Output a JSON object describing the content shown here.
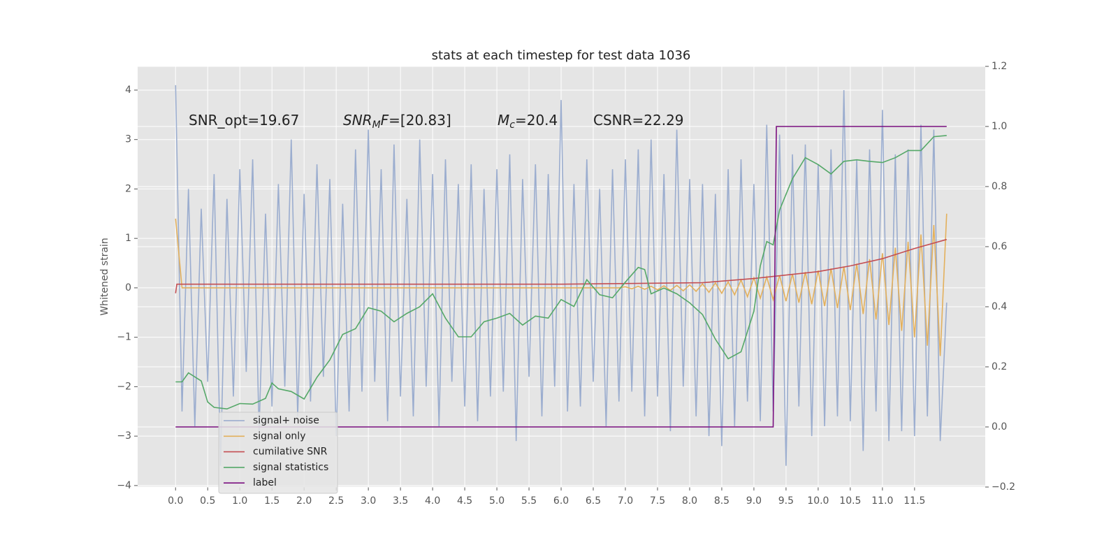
{
  "chart_data": {
    "type": "line",
    "title": "stats at each timestep for test data 1036",
    "ylabel": "Whitened strain",
    "annotations": [
      {
        "text": "SNR_opt=19.67"
      },
      {
        "italic": "SNR",
        "sub": "M",
        "italic2": "F",
        "text": "=[20.83]"
      },
      {
        "italic": "M",
        "sub": "c",
        "text": "=20.4"
      },
      {
        "text": "CSNR=22.29"
      }
    ],
    "x": [
      0.0,
      0.1,
      0.2,
      0.3,
      0.4,
      0.5,
      0.6,
      0.7,
      0.8,
      0.9,
      1.0,
      1.1,
      1.2,
      1.3,
      1.4,
      1.5,
      1.6,
      1.7,
      1.8,
      1.9,
      2.0,
      2.1,
      2.2,
      2.3,
      2.4,
      2.5,
      2.6,
      2.7,
      2.8,
      2.9,
      3.0,
      3.1,
      3.2,
      3.3,
      3.4,
      3.5,
      3.6,
      3.7,
      3.8,
      3.9,
      4.0,
      4.1,
      4.2,
      4.3,
      4.4,
      4.5,
      4.6,
      4.7,
      4.8,
      4.9,
      5.0,
      5.1,
      5.2,
      5.3,
      5.4,
      5.5,
      5.6,
      5.7,
      5.8,
      5.9,
      6.0,
      6.1,
      6.2,
      6.3,
      6.4,
      6.5,
      6.6,
      6.7,
      6.8,
      6.9,
      7.0,
      7.1,
      7.2,
      7.3,
      7.4,
      7.5,
      7.6,
      7.7,
      7.8,
      7.9,
      8.0,
      8.1,
      8.2,
      8.3,
      8.4,
      8.5,
      8.6,
      8.7,
      8.8,
      8.9,
      9.0,
      9.1,
      9.2,
      9.3,
      9.4,
      9.5,
      9.6,
      9.7,
      9.8,
      9.9,
      10.0,
      10.1,
      10.2,
      10.3,
      10.4,
      10.5,
      10.6,
      10.7,
      10.8,
      10.9,
      11.0,
      11.1,
      11.2,
      11.3,
      11.4,
      11.5,
      11.6,
      11.7,
      11.8,
      11.9,
      12.0
    ],
    "series": [
      {
        "name": "signal+ noise",
        "color": "#97aacd",
        "axis": "y",
        "values": [
          4.1,
          -2.5,
          2.0,
          -2.8,
          1.6,
          -1.9,
          2.3,
          -3.6,
          1.8,
          -2.2,
          2.4,
          -1.7,
          2.6,
          -2.9,
          1.5,
          -2.4,
          2.1,
          -2.0,
          3.0,
          -2.6,
          1.9,
          -2.3,
          2.5,
          -1.8,
          2.2,
          -3.0,
          1.7,
          -2.5,
          2.8,
          -2.1,
          3.2,
          -1.9,
          2.4,
          -2.7,
          2.9,
          -2.2,
          1.8,
          -2.6,
          3.0,
          -2.0,
          2.3,
          -2.8,
          2.6,
          -1.9,
          2.1,
          -2.4,
          2.5,
          -2.7,
          2.0,
          -2.2,
          2.4,
          -2.1,
          2.7,
          -3.1,
          2.2,
          -1.8,
          2.5,
          -2.6,
          2.3,
          -2.0,
          3.8,
          -2.5,
          2.1,
          -2.4,
          2.6,
          -1.9,
          2.0,
          -2.8,
          2.4,
          -2.3,
          2.6,
          -2.1,
          2.8,
          -2.6,
          3.0,
          -2.2,
          2.3,
          -2.9,
          3.2,
          -2.0,
          2.2,
          -2.6,
          2.1,
          -3.0,
          1.9,
          -3.2,
          2.4,
          -2.8,
          2.6,
          -2.3,
          2.1,
          -2.7,
          3.3,
          -2.5,
          3.1,
          -3.6,
          2.7,
          -2.4,
          2.9,
          -3.0,
          2.5,
          -2.8,
          2.8,
          -2.6,
          4.0,
          -2.7,
          2.6,
          -3.3,
          2.8,
          -2.5,
          3.6,
          -3.1,
          2.7,
          -2.9,
          2.8,
          -3.0,
          3.3,
          -2.6,
          3.2,
          -3.1,
          -0.3
        ]
      },
      {
        "name": "signal only",
        "color": "#e3b05c",
        "axis": "y",
        "values": [
          1.4,
          0,
          0,
          0,
          0,
          0,
          0,
          0,
          0,
          0,
          0,
          0,
          0,
          0,
          0,
          0,
          0,
          0,
          0,
          0,
          0,
          0,
          0,
          0,
          0,
          0,
          0,
          0,
          0,
          0,
          0,
          0,
          0,
          0,
          0,
          0,
          0,
          0,
          0,
          0,
          0,
          0,
          0,
          0,
          0,
          0,
          0,
          0,
          0,
          0,
          0,
          0,
          0,
          0,
          0,
          0,
          0,
          0,
          0,
          0,
          0,
          0,
          0,
          0,
          0,
          0,
          0,
          0,
          0,
          0,
          0.02,
          -0.02,
          0.03,
          -0.03,
          0.03,
          -0.04,
          0.04,
          -0.05,
          0.05,
          -0.06,
          0.06,
          -0.07,
          0.08,
          -0.09,
          0.1,
          -0.11,
          0.12,
          -0.14,
          0.16,
          -0.18,
          0.2,
          -0.21,
          0.22,
          -0.24,
          0.25,
          -0.27,
          0.28,
          -0.3,
          0.32,
          -0.33,
          0.35,
          -0.37,
          0.39,
          -0.41,
          0.43,
          -0.45,
          0.49,
          -0.53,
          0.58,
          -0.64,
          0.7,
          -0.75,
          0.81,
          -0.87,
          0.93,
          -1.0,
          1.08,
          -1.17,
          1.27,
          -1.38,
          1.5
        ]
      },
      {
        "name": "cumilative SNR",
        "color": "#c44e52",
        "axis": "y2",
        "x": [
          0,
          0.02,
          6,
          8.2,
          9,
          10,
          10.5,
          11,
          11.5,
          12
        ],
        "values": [
          0.445,
          0.475,
          0.475,
          0.48,
          0.494,
          0.517,
          0.536,
          0.56,
          0.594,
          0.624
        ]
      },
      {
        "name": "signal statistics",
        "color": "#55a868",
        "axis": "y2",
        "x": [
          0,
          0.1,
          0.2,
          0.4,
          0.5,
          0.6,
          0.8,
          1.0,
          1.2,
          1.4,
          1.5,
          1.6,
          1.8,
          2.0,
          2.2,
          2.4,
          2.6,
          2.8,
          3.0,
          3.2,
          3.4,
          3.6,
          3.8,
          4.0,
          4.2,
          4.4,
          4.6,
          4.8,
          5.0,
          5.2,
          5.4,
          5.6,
          5.8,
          6.0,
          6.2,
          6.4,
          6.6,
          6.8,
          7.0,
          7.2,
          7.3,
          7.4,
          7.6,
          7.8,
          8.0,
          8.2,
          8.4,
          8.6,
          8.8,
          9.0,
          9.1,
          9.2,
          9.3,
          9.4,
          9.6,
          9.8,
          10.0,
          10.2,
          10.4,
          10.6,
          10.8,
          11.0,
          11.2,
          11.4,
          11.6,
          11.8,
          12.0
        ],
        "values": [
          0.15,
          0.15,
          0.18,
          0.153,
          0.083,
          0.065,
          0.06,
          0.078,
          0.076,
          0.095,
          0.146,
          0.127,
          0.118,
          0.093,
          0.165,
          0.223,
          0.308,
          0.327,
          0.397,
          0.385,
          0.35,
          0.378,
          0.4,
          0.443,
          0.362,
          0.3,
          0.3,
          0.35,
          0.362,
          0.378,
          0.339,
          0.369,
          0.362,
          0.424,
          0.401,
          0.49,
          0.44,
          0.43,
          0.482,
          0.531,
          0.524,
          0.443,
          0.462,
          0.443,
          0.413,
          0.374,
          0.292,
          0.227,
          0.25,
          0.385,
          0.536,
          0.617,
          0.606,
          0.722,
          0.826,
          0.896,
          0.873,
          0.842,
          0.884,
          0.889,
          0.884,
          0.88,
          0.896,
          0.92,
          0.92,
          0.966,
          0.97
        ]
      },
      {
        "name": "label",
        "color": "#7b1080",
        "axis": "y2",
        "x": [
          0,
          9.3,
          9.35,
          12.0
        ],
        "values": [
          0,
          0,
          1,
          1
        ]
      }
    ],
    "xlim": [
      -0.59,
      12.6
    ],
    "xticks": [
      {
        "value": 0,
        "label": "0.0"
      },
      0.5,
      {
        "value": 1,
        "label": "1.0"
      },
      1.5,
      {
        "value": 2,
        "label": "2.0"
      },
      2.5,
      {
        "value": 3,
        "label": "3.0"
      },
      3.5,
      {
        "value": 4,
        "label": "4.0"
      },
      4.5,
      {
        "value": 5,
        "label": "5.0"
      },
      5.5,
      {
        "value": 6,
        "label": "6.0"
      },
      6.5,
      {
        "value": 7,
        "label": "7.0"
      },
      7.5,
      {
        "value": 8,
        "label": "8.0"
      },
      8.5,
      {
        "value": 9,
        "label": "9.0"
      },
      9.5,
      {
        "value": 10,
        "label": "10.0"
      },
      10.5,
      {
        "value": 11,
        "label": "11.0"
      },
      11.5
    ],
    "ylim": [
      -4.03,
      4.48
    ],
    "yticks": [
      {
        "value": -4,
        "label": "−4"
      },
      {
        "value": -3,
        "label": "−3"
      },
      {
        "value": -2,
        "label": "−2"
      },
      {
        "value": -1,
        "label": "−1"
      },
      0,
      1,
      2,
      3,
      4
    ],
    "y2lim": [
      -0.2,
      1.2
    ],
    "y2ticks": [
      {
        "value": -0.2,
        "label": "−0.2"
      },
      {
        "value": 0,
        "label": "0.0"
      },
      {
        "value": 0.2,
        "label": "0.2"
      },
      {
        "value": 0.4,
        "label": "0.4"
      },
      {
        "value": 0.6,
        "label": "0.6"
      },
      {
        "value": 0.8,
        "label": "0.8"
      },
      {
        "value": 1,
        "label": "1.0"
      },
      {
        "value": 1.2,
        "label": "1.2"
      }
    ],
    "grid": true,
    "legend": "lower left"
  }
}
